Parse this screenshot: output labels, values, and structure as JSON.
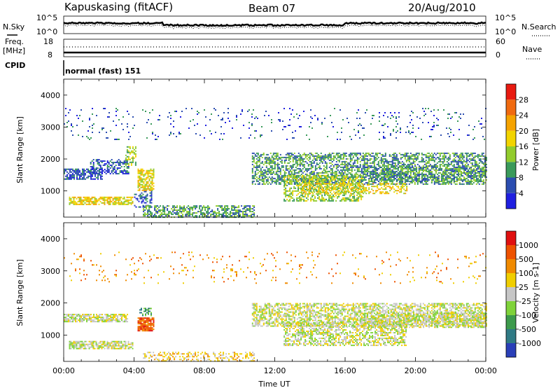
{
  "header": {
    "station": "Kapuskasing (fitACF)",
    "beam": "Beam 07",
    "date": "20/Aug/2010"
  },
  "top_panels": {
    "nsky_label": "N.Sky",
    "nsky_ticks": [
      "10^5",
      "10^0"
    ],
    "nsearch_label": "N.Search",
    "nsearch_ticks": [
      "10^5",
      "10^0"
    ],
    "freq_label_1": "Freq.",
    "freq_label_2": "[MHz]",
    "freq_ticks": [
      "18",
      "8"
    ],
    "nave_label": "Nave",
    "nave_ticks": [
      "60",
      "0"
    ],
    "cpid_label": "CPID",
    "cpid_text": "normal (fast) 151"
  },
  "chart_data": [
    {
      "type": "heatmap",
      "name": "power",
      "ylabel": "Slant Range [km]",
      "ylim": [
        180,
        4500
      ],
      "yticks": [
        1000,
        2000,
        3000,
        4000
      ],
      "xlim": [
        0,
        24
      ],
      "colorbar": {
        "label": "Power [dB]",
        "ticks": [
          "4",
          "8",
          "12",
          "16",
          "20",
          "24",
          "28"
        ],
        "colors": [
          "#1f1fe0",
          "#2b4db0",
          "#3a9a5a",
          "#92cc2d",
          "#f2d400",
          "#f5a300",
          "#f06a10",
          "#e81a10"
        ]
      },
      "regions": [
        {
          "t0": 0.0,
          "t1": 2.2,
          "r0": 1380,
          "r1": 1700,
          "level": 1,
          "density": 0.7
        },
        {
          "t0": 0.3,
          "t1": 3.9,
          "r0": 560,
          "r1": 820,
          "level": 4,
          "density": 0.7
        },
        {
          "t0": 1.5,
          "t1": 3.7,
          "r0": 1550,
          "r1": 2000,
          "level": 1,
          "density": 0.5
        },
        {
          "t0": 3.5,
          "t1": 4.1,
          "r0": 1800,
          "r1": 2400,
          "level": 3,
          "density": 0.6
        },
        {
          "t0": 4.2,
          "t1": 5.1,
          "r0": 1000,
          "r1": 1700,
          "level": 4,
          "density": 0.7
        },
        {
          "t0": 4.0,
          "t1": 5.0,
          "r0": 500,
          "r1": 1000,
          "level": 1,
          "density": 0.4
        },
        {
          "t0": 4.5,
          "t1": 10.8,
          "r0": 180,
          "r1": 550,
          "level": 2,
          "density": 0.6
        },
        {
          "t0": 10.7,
          "t1": 24.0,
          "r0": 1200,
          "r1": 2200,
          "level": 2,
          "density": 0.55
        },
        {
          "t0": 12.5,
          "t1": 17.0,
          "r0": 700,
          "r1": 1500,
          "level": 3,
          "density": 0.55
        },
        {
          "t0": 13.5,
          "t1": 19.5,
          "r0": 900,
          "r1": 1250,
          "level": 4,
          "density": 0.4
        },
        {
          "t0": 17.0,
          "t1": 24.0,
          "r0": 1300,
          "r1": 1800,
          "level": 2,
          "density": 0.45
        },
        {
          "t0": 0.0,
          "t1": 24.0,
          "r0": 2600,
          "r1": 3600,
          "level": 1,
          "density": 0.05
        }
      ]
    },
    {
      "type": "heatmap",
      "name": "velocity",
      "ylabel": "Slant Range [km]",
      "xlabel": "Time UT",
      "ylim": [
        180,
        4500
      ],
      "yticks": [
        1000,
        2000,
        3000,
        4000
      ],
      "xlim": [
        0,
        24
      ],
      "xticks": [
        "00:00",
        "04:00",
        "08:00",
        "12:00",
        "16:00",
        "20:00",
        "00:00"
      ],
      "colorbar": {
        "label": "Velocity [m s-1]",
        "ticks": [
          "1000",
          "500",
          "100",
          "25",
          "-25",
          "-100",
          "-500",
          "-1000"
        ],
        "colors": [
          "#2a3fb8",
          "#2f7a84",
          "#3d9a4c",
          "#7fd33a",
          "#c6c6c6",
          "#f0ce00",
          "#f08a00",
          "#ee5200",
          "#e01010"
        ]
      },
      "regions": [
        {
          "t0": 0.0,
          "t1": 3.6,
          "r0": 1420,
          "r1": 1660,
          "level": 4,
          "density": 0.8
        },
        {
          "t0": 0.3,
          "t1": 3.9,
          "r0": 580,
          "r1": 820,
          "level": 4,
          "density": 0.75
        },
        {
          "t0": 4.2,
          "t1": 5.1,
          "r0": 1150,
          "r1": 1550,
          "level": 7,
          "density": 0.85
        },
        {
          "t0": 4.3,
          "t1": 5.0,
          "r0": 1600,
          "r1": 1850,
          "level": 2,
          "density": 0.5
        },
        {
          "t0": 4.5,
          "t1": 10.8,
          "r0": 180,
          "r1": 480,
          "level": 5,
          "density": 0.35
        },
        {
          "t0": 10.7,
          "t1": 24.0,
          "r0": 1300,
          "r1": 2000,
          "level": 4,
          "density": 0.6
        },
        {
          "t0": 12.5,
          "t1": 19.5,
          "r0": 700,
          "r1": 1400,
          "level": 4,
          "density": 0.55
        },
        {
          "t0": 17.0,
          "t1": 24.0,
          "r0": 1250,
          "r1": 1700,
          "level": 4,
          "density": 0.55
        },
        {
          "t0": 0.0,
          "t1": 24.0,
          "r0": 2600,
          "r1": 3600,
          "level": 6,
          "density": 0.04
        }
      ]
    }
  ]
}
